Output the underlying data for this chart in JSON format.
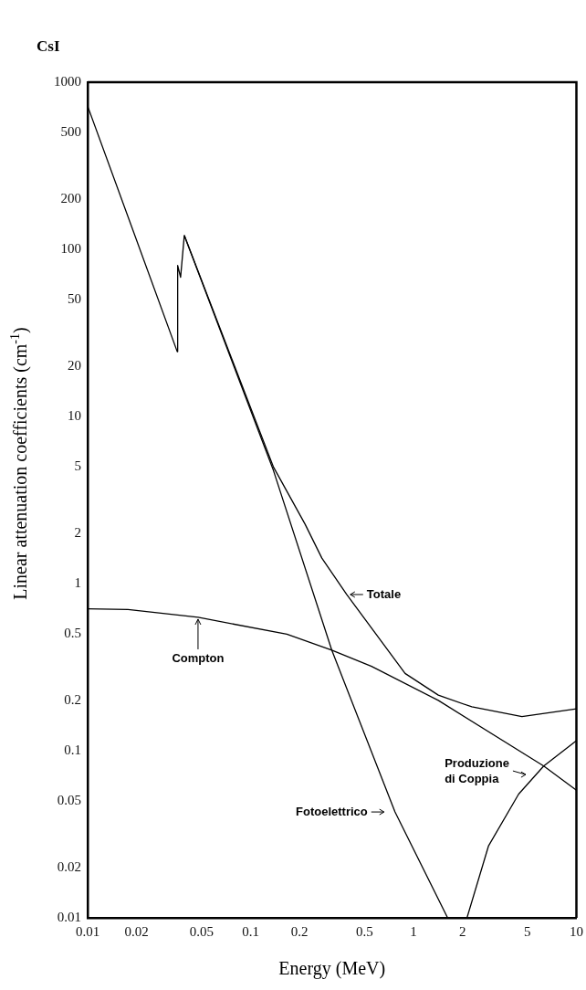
{
  "chart_data": {
    "type": "line",
    "title": "CsI",
    "xlabel": "Energy (MeV)",
    "ylabel": "Linear attenuation coefficients (cm$^{-1}$)",
    "log": "xy",
    "grid": false,
    "legend": false,
    "marker": "none",
    "line_style": "solid",
    "xlim": [
      0.01,
      10
    ],
    "xticks": [
      0.01,
      0.02,
      0.05,
      0.1,
      0.2,
      0.5,
      1,
      2,
      5,
      10
    ],
    "ylim": [
      0.01,
      1000
    ],
    "yticks": [
      0.01,
      0.02,
      0.05,
      0.1,
      0.2,
      0.5,
      1,
      2,
      5,
      10,
      20,
      50,
      100,
      200,
      500,
      1000
    ],
    "series": [
      {
        "color": "#000000",
        "x": [
          0.01,
          0.0355,
          0.0357,
          0.0372,
          0.0392,
          0.138,
          0.216,
          0.274,
          0.389,
          0.888,
          1.42,
          2.28,
          4.63,
          10
        ],
        "values": [
          720,
          24.4,
          80,
          68,
          121,
          5.0,
          2.27,
          1.42,
          0.86,
          0.29,
          0.215,
          0.183,
          0.16,
          0.178
        ]
      },
      {
        "color": "#000000",
        "x": [
          0.0392,
          0.138,
          0.315,
          0.77,
          1.62
        ],
        "values": [
          121,
          4.77,
          0.4,
          0.043,
          0.01
        ]
      },
      {
        "color": "#000000",
        "x": [
          0.01,
          0.0177,
          0.0476,
          0.167,
          0.315,
          0.553,
          1.42,
          6.3,
          10
        ],
        "values": [
          0.706,
          0.7,
          0.628,
          0.498,
          0.4,
          0.32,
          0.2,
          0.081,
          0.058
        ]
      },
      {
        "color": "#000000",
        "x": [
          2.13,
          2.89,
          4.42,
          6.3,
          10
        ],
        "values": [
          0.01,
          0.027,
          0.055,
          0.081,
          0.115
        ]
      }
    ],
    "annotations": [
      {
        "text": "Totale",
        "x": 0.389,
        "y": 0.86
      },
      {
        "text": "Compton",
        "x": 0.0476,
        "y": 0.628
      },
      {
        "text": "Fotoelettrico",
        "x": 0.77,
        "y": 0.043
      },
      {
        "text": "Produzione\ndi Coppia",
        "x": 5.7,
        "y": 0.072
      }
    ]
  }
}
